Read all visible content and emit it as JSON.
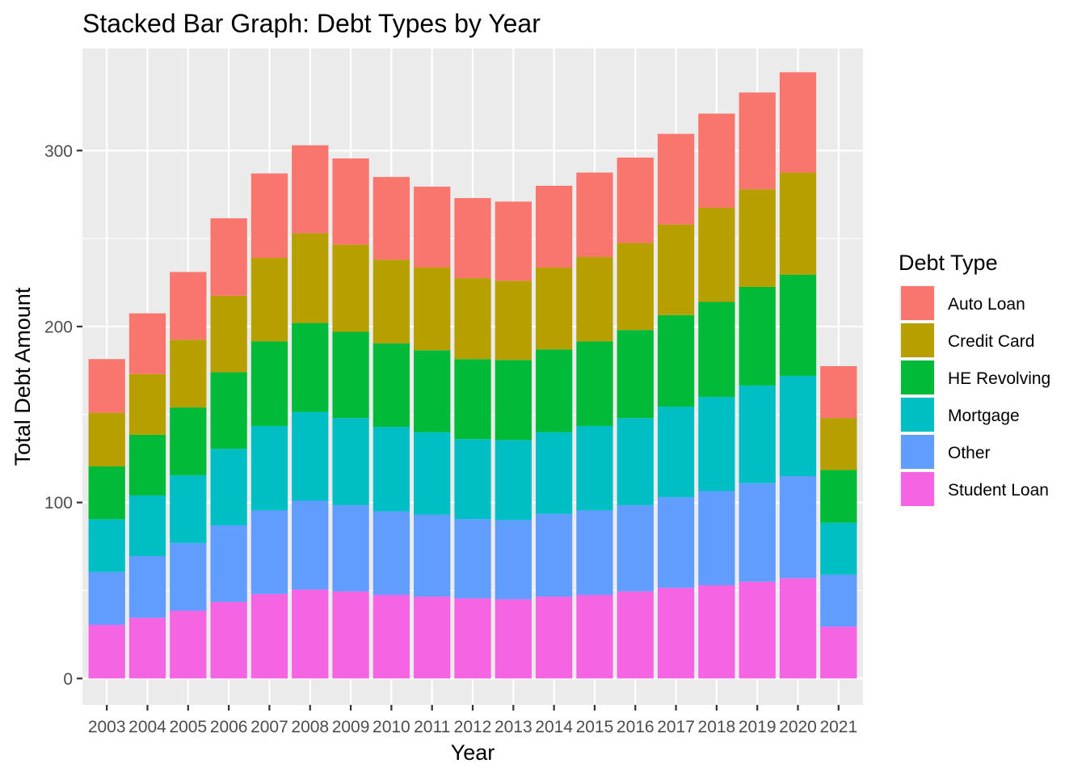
{
  "chart_data": {
    "type": "bar",
    "stacked": true,
    "title": "Stacked Bar Graph: Debt Types by Year",
    "xlabel": "Year",
    "ylabel": "Total Debt Amount",
    "ylim": [
      -15,
      358
    ],
    "yticks": [
      0,
      100,
      200,
      300
    ],
    "grid": true,
    "legend_title": "Debt Type",
    "legend_position": "right",
    "categories": [
      "2003",
      "2004",
      "2005",
      "2006",
      "2007",
      "2008",
      "2009",
      "2010",
      "2011",
      "2012",
      "2013",
      "2014",
      "2015",
      "2016",
      "2017",
      "2018",
      "2019",
      "2020",
      "2021"
    ],
    "stack_order_bottom_to_top": [
      "Student Loan",
      "Other",
      "Mortgage",
      "HE Revolving",
      "Credit Card",
      "Auto Loan"
    ],
    "series": [
      {
        "name": "Auto Loan",
        "color": "#F8766D",
        "values": [
          30.5,
          34.5,
          38.5,
          44,
          48,
          50,
          49,
          47,
          46,
          45.5,
          45,
          46.5,
          48,
          48.5,
          51.5,
          53.5,
          55,
          57,
          29.5
        ]
      },
      {
        "name": "Credit Card",
        "color": "#B79F00",
        "values": [
          30.5,
          34.5,
          38.5,
          43.5,
          47.5,
          51,
          49.5,
          47.5,
          47,
          46,
          45,
          46.5,
          48,
          49.5,
          51.5,
          53.5,
          55.5,
          58,
          29.5
        ]
      },
      {
        "name": "HE Revolving",
        "color": "#00BA38",
        "values": [
          30,
          34.5,
          38.5,
          43.5,
          48,
          50.5,
          49,
          47.5,
          46.5,
          45.5,
          45.5,
          47,
          48,
          50,
          52,
          54,
          56,
          57.5,
          30
        ]
      },
      {
        "name": "Mortgage",
        "color": "#00BFC4",
        "values": [
          30,
          34.5,
          38.5,
          43.5,
          48,
          50.5,
          49.5,
          48,
          47,
          45.5,
          45.5,
          46.5,
          48,
          49.5,
          51.5,
          53.5,
          55.5,
          57,
          29.5
        ]
      },
      {
        "name": "Other",
        "color": "#619CFF",
        "values": [
          30,
          35,
          38.5,
          43.5,
          47.5,
          50.5,
          49,
          47.5,
          46.5,
          45,
          45,
          47,
          48,
          49,
          51.5,
          53.5,
          56,
          58,
          29.5
        ]
      },
      {
        "name": "Student Loan",
        "color": "#F564E3",
        "values": [
          30.5,
          34.5,
          38.5,
          43.5,
          48,
          50.5,
          49.5,
          47.5,
          46.5,
          45.5,
          45,
          46.5,
          47.5,
          49.5,
          51.5,
          53,
          55,
          57,
          29.5
        ]
      }
    ],
    "colors": {
      "panel_background": "#EBEBEB",
      "grid": "#FFFFFF",
      "tick_text": "#4D4D4D"
    }
  }
}
